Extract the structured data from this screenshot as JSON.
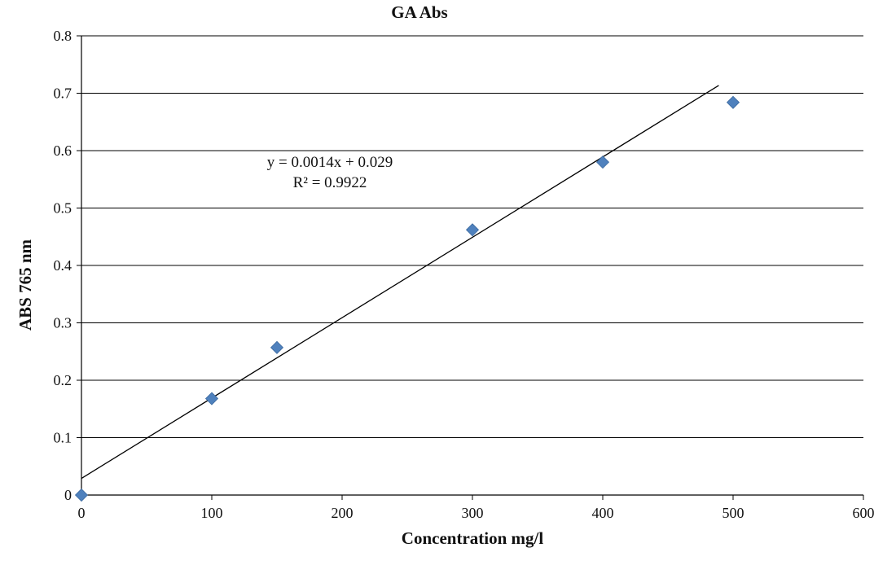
{
  "chart_data": {
    "type": "scatter",
    "title": "GA Abs",
    "xlabel": "Concentration mg/l",
    "ylabel": "ABS 765 nm",
    "xlim": [
      0,
      600
    ],
    "ylim": [
      0,
      0.8
    ],
    "x_ticks": [
      0,
      100,
      200,
      300,
      400,
      500,
      600
    ],
    "y_ticks": [
      0,
      0.1,
      0.2,
      0.3,
      0.4,
      0.5,
      0.6,
      0.7,
      0.8
    ],
    "x_tick_labels": [
      "0",
      "100",
      "200",
      "300",
      "400",
      "500",
      "600"
    ],
    "y_tick_labels": [
      "0",
      "0.1",
      "0.2",
      "0.3",
      "0.4",
      "0.5",
      "0.6",
      "0.7",
      "0.8"
    ],
    "grid": "horizontal",
    "legend": "none",
    "series": [
      {
        "x": [
          0,
          100,
          150,
          300,
          400,
          500
        ],
        "y": [
          0,
          0.168,
          0.257,
          0.462,
          0.58,
          0.684
        ],
        "marker": "diamond",
        "color": "#4F81BD"
      }
    ],
    "trendline": {
      "type": "linear",
      "slope": 0.0014,
      "intercept": 0.029,
      "x_range": [
        0,
        489
      ],
      "color": "#000000"
    },
    "annotations": {
      "equation": "y = 0.0014x + 0.029",
      "r_squared": "R² = 0.9922"
    }
  }
}
